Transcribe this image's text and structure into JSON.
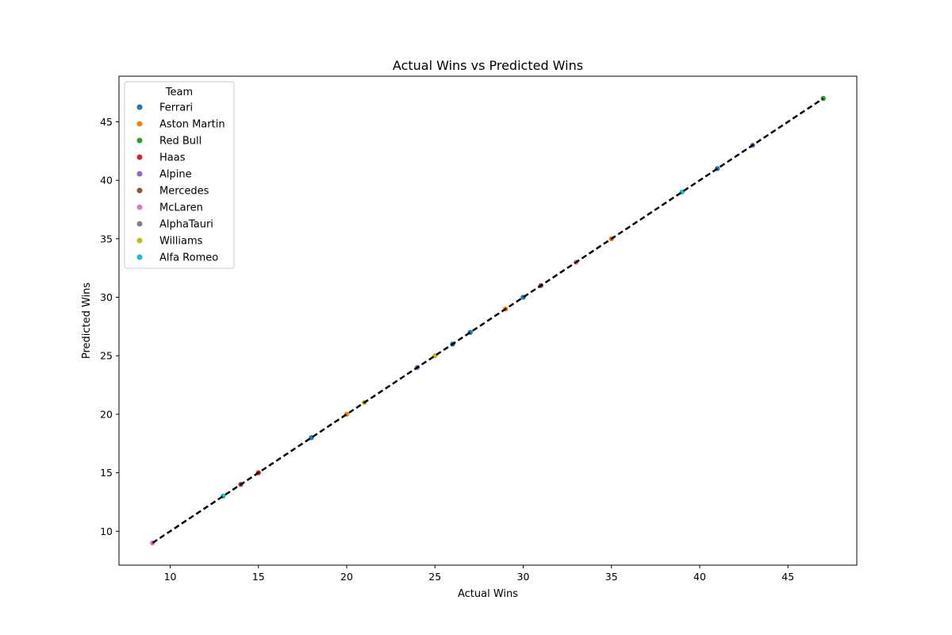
{
  "chart_data": {
    "type": "scatter",
    "title": "Actual Wins vs Predicted Wins",
    "xlabel": "Actual Wins",
    "ylabel": "Predicted Wins",
    "xlim": [
      7.1,
      48.9
    ],
    "ylim": [
      7.1,
      48.9
    ],
    "xticks": [
      10,
      15,
      20,
      25,
      30,
      35,
      40,
      45
    ],
    "yticks": [
      10,
      15,
      20,
      25,
      30,
      35,
      40,
      45
    ],
    "grid": false,
    "legend": {
      "title": "Team",
      "placement": "top-left"
    },
    "series": [
      {
        "name": "Ferrari",
        "color": "#1f77b4",
        "points": [
          [
            18,
            18
          ],
          [
            26,
            26
          ],
          [
            27,
            27
          ],
          [
            30,
            30
          ],
          [
            41,
            41
          ]
        ]
      },
      {
        "name": "Aston Martin",
        "color": "#ff7f0e",
        "points": [
          [
            20,
            20
          ],
          [
            29,
            29
          ],
          [
            35,
            35
          ]
        ]
      },
      {
        "name": "Red Bull",
        "color": "#2ca02c",
        "points": [
          [
            47,
            47
          ]
        ]
      },
      {
        "name": "Haas",
        "color": "#d62728",
        "points": [
          [
            15,
            15
          ]
        ]
      },
      {
        "name": "Alpine",
        "color": "#9467bd",
        "points": [
          [
            24,
            24
          ],
          [
            43,
            43
          ]
        ]
      },
      {
        "name": "Mercedes",
        "color": "#8c564b",
        "points": [
          [
            14,
            14
          ],
          [
            31,
            31
          ]
        ]
      },
      {
        "name": "McLaren",
        "color": "#e377c2",
        "points": [
          [
            9,
            9
          ],
          [
            33,
            33
          ]
        ]
      },
      {
        "name": "AlphaTauri",
        "color": "#7f7f7f",
        "points": []
      },
      {
        "name": "Williams",
        "color": "#bcbd22",
        "points": [
          [
            21,
            21
          ],
          [
            25,
            25
          ]
        ]
      },
      {
        "name": "Alfa Romeo",
        "color": "#17becf",
        "points": [
          [
            13,
            13
          ],
          [
            39,
            39
          ]
        ]
      }
    ],
    "reference_line": {
      "style": "dashed",
      "color": "#000000",
      "from": [
        9,
        9
      ],
      "to": [
        47,
        47
      ]
    }
  }
}
